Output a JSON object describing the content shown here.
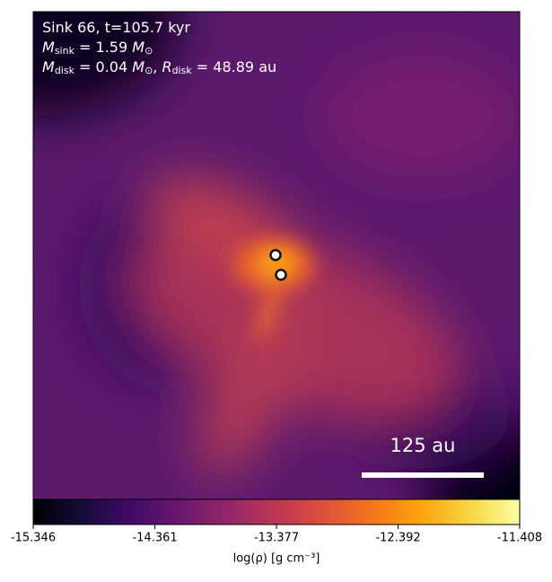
{
  "chart_data": {
    "type": "heatmap",
    "annotation_lines": [
      [
        "Sink 66, t=105.7 kyr"
      ],
      [
        "M",
        "sink",
        " = 1.59 ",
        "M",
        "⊙"
      ],
      [
        "M",
        "disk",
        " = 0.04 ",
        "M",
        "⊙",
        ", ",
        "R",
        "disk",
        " = 48.89 au"
      ]
    ],
    "scale_bar_label": "125 au",
    "colorbar_label": "log(ρ) [g cm⁻³]",
    "clim": [
      -15.346,
      -11.408
    ],
    "cticks": [
      -15.346,
      -14.361,
      -13.377,
      -12.392,
      -11.408
    ]
  }
}
